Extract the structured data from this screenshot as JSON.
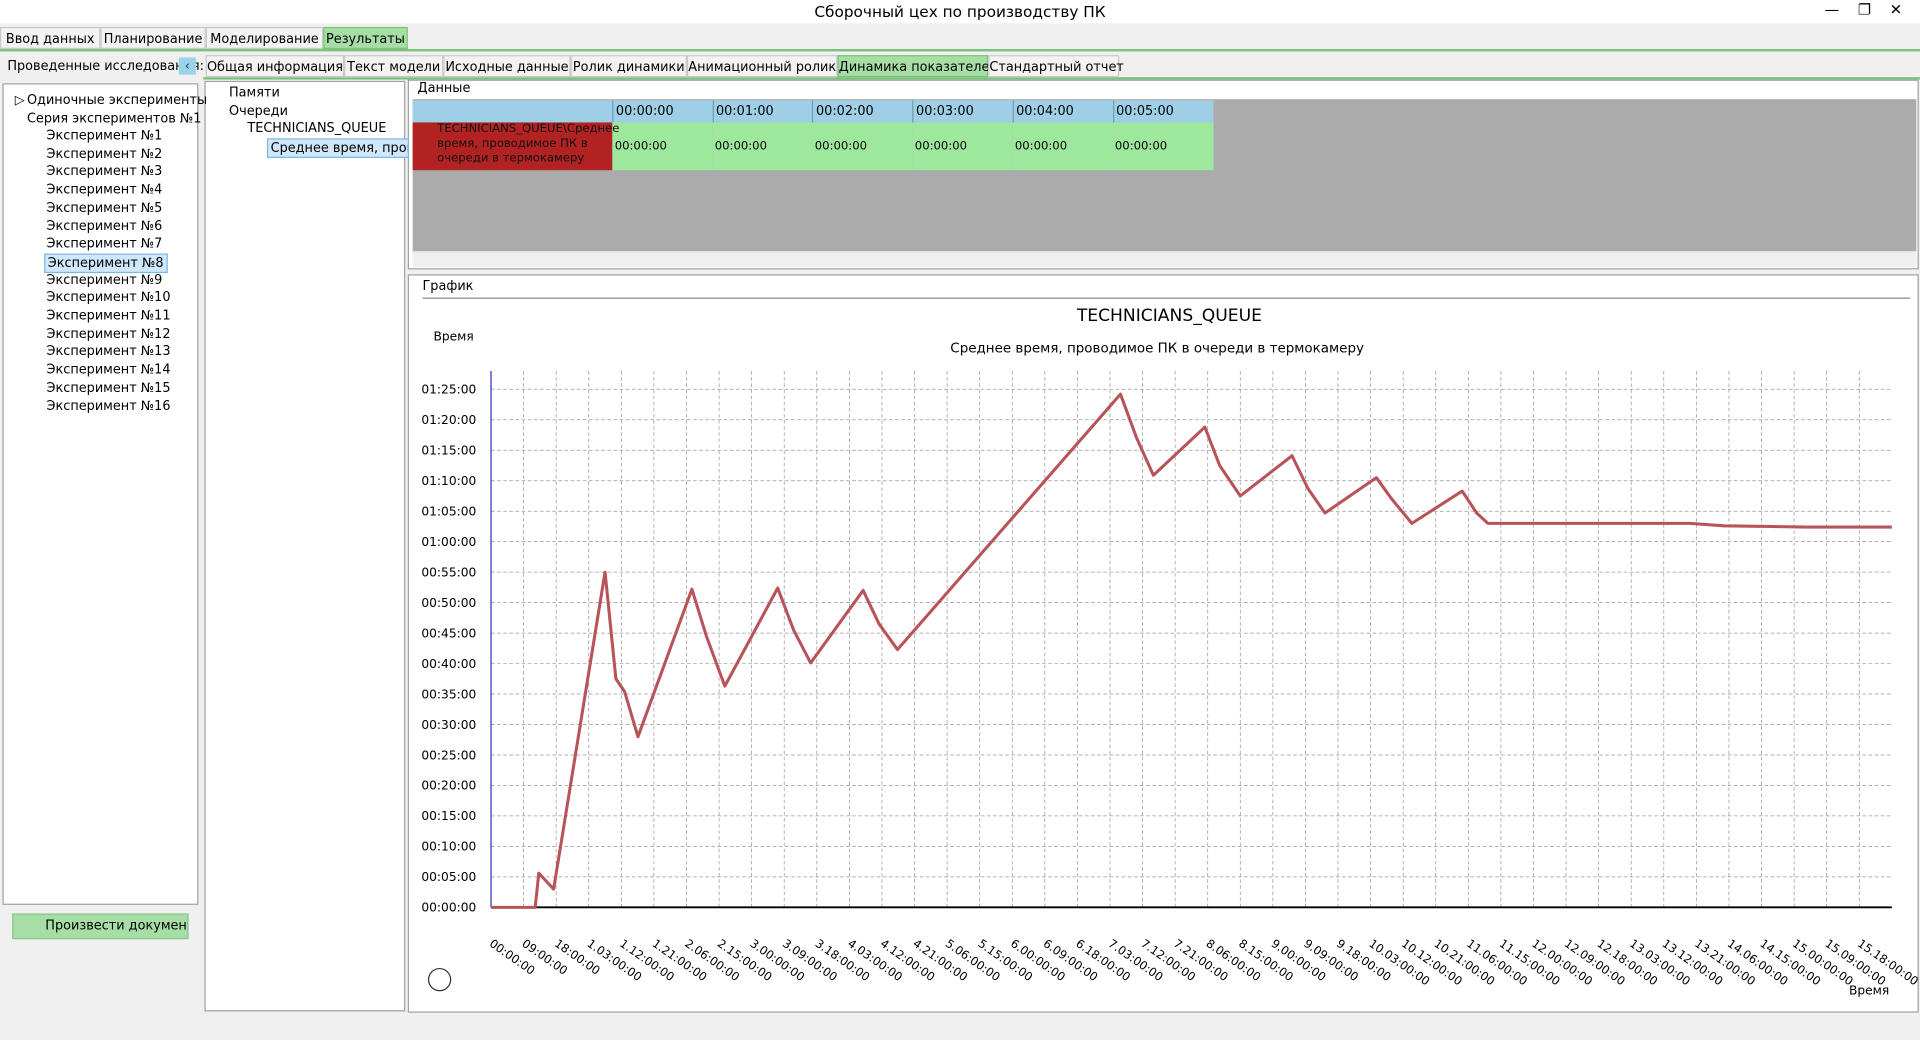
{
  "window": {
    "title": "Сборочный цех по производству ПК"
  },
  "main_tabs": [
    "Ввод данных",
    "Планирование",
    "Моделирование",
    "Результаты"
  ],
  "left_panel": {
    "title": "Проведенные исследования:",
    "tree": [
      "Одиночные эксперименты",
      "Серия экспериментов №1"
    ],
    "experiments": [
      "Эксперимент №1",
      "Эксперимент №2",
      "Эксперимент №3",
      "Эксперимент №4",
      "Эксперимент №5",
      "Эксперимент №6",
      "Эксперимент №7",
      "Эксперимент №8",
      "Эксперимент №9",
      "Эксперимент №10",
      "Эксперимент №11",
      "Эксперимент №12",
      "Эксперимент №13",
      "Эксперимент №14",
      "Эксперимент №15",
      "Эксперимент №16"
    ],
    "button": "Произвести документиро"
  },
  "sub_tabs": [
    "Общая информация",
    "Текст модели",
    "Исходные данные",
    "Ролик динамики",
    "Анимационный ролик",
    "Динамика показателей",
    "Стандартный отчет"
  ],
  "indicator_tree": [
    "Памяти",
    "Очереди",
    "TECHNICIANS_QUEUE",
    "Среднее время, провод"
  ],
  "data_panel": {
    "title": "Данные",
    "columns": [
      "00:00:00",
      "00:01:00",
      "00:02:00",
      "00:03:00",
      "00:04:00",
      "00:05:00"
    ],
    "row_label": "TECHNICIANS_QUEUE\\Среднее время, проводимое ПК в очереди в термокамеру",
    "cells": [
      "00:00:00",
      "00:00:00",
      "00:00:00",
      "00:00:00",
      "00:00:00",
      "00:00:00"
    ]
  },
  "graph_panel": {
    "title": "График"
  },
  "chart_data": {
    "type": "line",
    "title": "TECHNICIANS_QUEUE",
    "subtitle": "Среднее время, проводимое ПК в очереди в термокамеру",
    "y_label": "Время",
    "x_label": "Время",
    "color": "#b85459",
    "grid": true,
    "x": [
      0,
      12.2,
      13.2,
      17.3,
      31.5,
      34.5,
      36.9,
      40.6,
      55.5,
      59.5,
      64.6,
      79.2,
      83.6,
      88.3,
      102.8,
      107.2,
      112.3,
      173.9,
      178.3,
      183,
      197.2,
      201.3,
      207,
      221.3,
      225.7,
      230.4,
      244.6,
      248.7,
      254.4,
      268.3,
      272.3,
      275.4,
      331.2,
      340.6,
      363.3,
      387
    ],
    "values": [
      0,
      0,
      5.6,
      3,
      55,
      37.5,
      35.4,
      28,
      52.2,
      44.5,
      36.3,
      52.4,
      45.5,
      40.1,
      52,
      46.5,
      42.3,
      84.2,
      77.1,
      70.9,
      78.8,
      72.5,
      67.5,
      74.1,
      68.7,
      64.7,
      70.5,
      67.1,
      63,
      68.3,
      64.7,
      63,
      63,
      62.6,
      62.4,
      62.4
    ],
    "xlim": [
      0,
      387
    ],
    "ylim": [
      0,
      88
    ],
    "xticks": [
      {
        "value": 0,
        "label": "00:00:00"
      },
      {
        "value": 9,
        "label": "09:00:00"
      },
      {
        "value": 18,
        "label": "18:00:00"
      },
      {
        "value": 27,
        "label": "1.03:00:00"
      },
      {
        "value": 36,
        "label": "1.12:00:00"
      },
      {
        "value": 45,
        "label": "1.21:00:00"
      },
      {
        "value": 54,
        "label": "2.06:00:00"
      },
      {
        "value": 63,
        "label": "2.15:00:00"
      },
      {
        "value": 72,
        "label": "3.00:00:00"
      },
      {
        "value": 81,
        "label": "3.09:00:00"
      },
      {
        "value": 90,
        "label": "3.18:00:00"
      },
      {
        "value": 99,
        "label": "4.03:00:00"
      },
      {
        "value": 108,
        "label": "4.12:00:00"
      },
      {
        "value": 117,
        "label": "4.21:00:00"
      },
      {
        "value": 126,
        "label": "5.06:00:00"
      },
      {
        "value": 135,
        "label": "5.15:00:00"
      },
      {
        "value": 144,
        "label": "6.00:00:00"
      },
      {
        "value": 153,
        "label": "6.09:00:00"
      },
      {
        "value": 162,
        "label": "6.18:00:00"
      },
      {
        "value": 171,
        "label": "7.03:00:00"
      },
      {
        "value": 180,
        "label": "7.12:00:00"
      },
      {
        "value": 189,
        "label": "7.21:00:00"
      },
      {
        "value": 198,
        "label": "8.06:00:00"
      },
      {
        "value": 207,
        "label": "8.15:00:00"
      },
      {
        "value": 216,
        "label": "9.00:00:00"
      },
      {
        "value": 225,
        "label": "9.09:00:00"
      },
      {
        "value": 234,
        "label": "9.18:00:00"
      },
      {
        "value": 243,
        "label": "10.03:00:00"
      },
      {
        "value": 252,
        "label": "10.12:00:00"
      },
      {
        "value": 261,
        "label": "10.21:00:00"
      },
      {
        "value": 270,
        "label": "11.06:00:00"
      },
      {
        "value": 279,
        "label": "11.15:00:00"
      },
      {
        "value": 288,
        "label": "12.00:00:00"
      },
      {
        "value": 297,
        "label": "12.09:00:00"
      },
      {
        "value": 306,
        "label": "12.18:00:00"
      },
      {
        "value": 315,
        "label": "13.03:00:00"
      },
      {
        "value": 324,
        "label": "13.12:00:00"
      },
      {
        "value": 333,
        "label": "13.21:00:00"
      },
      {
        "value": 342,
        "label": "14.06:00:00"
      },
      {
        "value": 351,
        "label": "14.15:00:00"
      },
      {
        "value": 360,
        "label": "15.00:00:00"
      },
      {
        "value": 369,
        "label": "15.09:00:00"
      },
      {
        "value": 378,
        "label": "15.18:00:00"
      }
    ],
    "yticks": [
      {
        "value": 0,
        "label": "00:00:00"
      },
      {
        "value": 5,
        "label": "00:05:00"
      },
      {
        "value": 10,
        "label": "00:10:00"
      },
      {
        "value": 15,
        "label": "00:15:00"
      },
      {
        "value": 20,
        "label": "00:20:00"
      },
      {
        "value": 25,
        "label": "00:25:00"
      },
      {
        "value": 30,
        "label": "00:30:00"
      },
      {
        "value": 35,
        "label": "00:35:00"
      },
      {
        "value": 40,
        "label": "00:40:00"
      },
      {
        "value": 45,
        "label": "00:45:00"
      },
      {
        "value": 50,
        "label": "00:50:00"
      },
      {
        "value": 55,
        "label": "00:55:00"
      },
      {
        "value": 60,
        "label": "01:00:00"
      },
      {
        "value": 65,
        "label": "01:05:00"
      },
      {
        "value": 70,
        "label": "01:10:00"
      },
      {
        "value": 75,
        "label": "01:15:00"
      },
      {
        "value": 80,
        "label": "01:20:00"
      },
      {
        "value": 85,
        "label": "01:25:00"
      }
    ]
  }
}
